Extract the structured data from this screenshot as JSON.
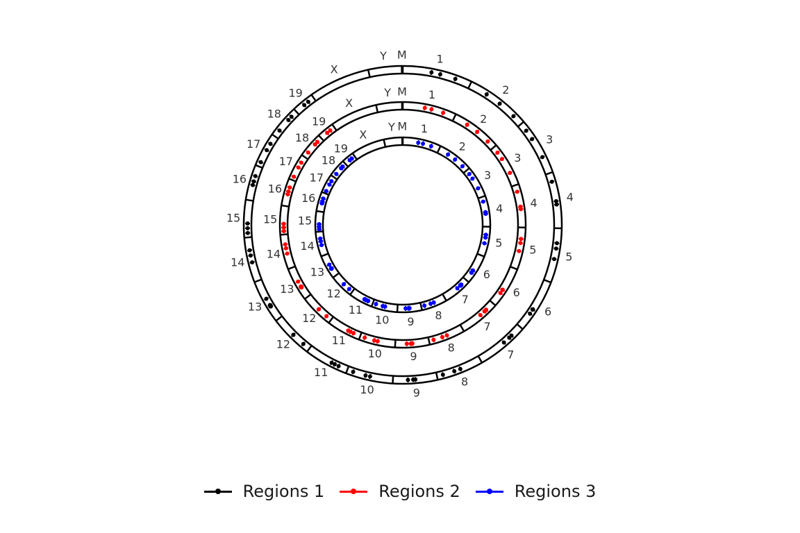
{
  "chart_data": {
    "type": "circular-genome",
    "chromosomes": [
      "1",
      "2",
      "3",
      "4",
      "5",
      "6",
      "7",
      "8",
      "9",
      "10",
      "11",
      "12",
      "13",
      "14",
      "15",
      "16",
      "17",
      "18",
      "19",
      "X",
      "Y",
      "M"
    ],
    "tracks": [
      {
        "name": "Regions 1",
        "color": "#000000",
        "positions": [
          0.42,
          0.55,
          0.7,
          0.52,
          0.38,
          0.61,
          0.44,
          0.88,
          0.5,
          0.5,
          0.22,
          0.5,
          0.55,
          0.6,
          0.25,
          0.72,
          0.14,
          0.23,
          0.72,
          0.78,
          0.84,
          0.15,
          0.58,
          0.28,
          0.7,
          0.3,
          0.62,
          0.67,
          0.88,
          0.4,
          0.18,
          0.34,
          0.44,
          0.38,
          0.56,
          0.54,
          0.66,
          0.48,
          0.55,
          0.3,
          0.33,
          0.16,
          0.58,
          0.6,
          0.24,
          0.48,
          0.55,
          0.6,
          0.32,
          0.5,
          0.38,
          0.72,
          0.12,
          0.45,
          0.76,
          0.8
        ]
      },
      {
        "name": "Regions 2",
        "color": "#ff0000",
        "positions": [
          0.42,
          0.55,
          0.7,
          0.52,
          0.38,
          0.61,
          0.44,
          0.88,
          0.5,
          0.5,
          0.22,
          0.5,
          0.55,
          0.6,
          0.25,
          0.72,
          0.14,
          0.23,
          0.72,
          0.78,
          0.84,
          0.15,
          0.58,
          0.28,
          0.7,
          0.3,
          0.62,
          0.67,
          0.88,
          0.4,
          0.18,
          0.34,
          0.44,
          0.38,
          0.56,
          0.54,
          0.66,
          0.48,
          0.55,
          0.3,
          0.33,
          0.16,
          0.58,
          0.6,
          0.24,
          0.48,
          0.55,
          0.6,
          0.32,
          0.5,
          0.38,
          0.72,
          0.12,
          0.45,
          0.76,
          0.8
        ]
      },
      {
        "name": "Regions 3",
        "color": "#0000ff",
        "positions": [
          0.42,
          0.55,
          0.7,
          0.52,
          0.38,
          0.61,
          0.44,
          0.88,
          0.5,
          0.5,
          0.22,
          0.5,
          0.55,
          0.6,
          0.25,
          0.72,
          0.14,
          0.23,
          0.72,
          0.78,
          0.84,
          0.15,
          0.58,
          0.28,
          0.7,
          0.3,
          0.62,
          0.67,
          0.88,
          0.4,
          0.18,
          0.34,
          0.44,
          0.38,
          0.56,
          0.54,
          0.66,
          0.48,
          0.55,
          0.3,
          0.33,
          0.16,
          0.58,
          0.6,
          0.24,
          0.48,
          0.55,
          0.6,
          0.32,
          0.5,
          0.38,
          0.72,
          0.12,
          0.45,
          0.76,
          0.8
        ]
      }
    ],
    "legend_position": "bottom"
  },
  "legend": {
    "items": [
      {
        "label": "Regions 1",
        "color": "#000000"
      },
      {
        "label": "Regions 2",
        "color": "#ff0000"
      },
      {
        "label": "Regions 3",
        "color": "#0000ff"
      }
    ]
  }
}
